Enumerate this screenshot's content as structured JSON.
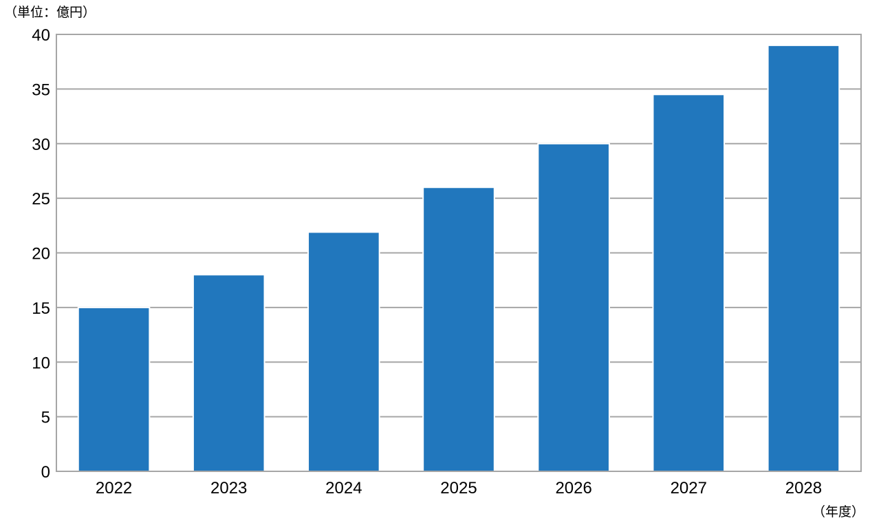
{
  "chart_data": {
    "type": "bar",
    "categories": [
      "2022",
      "2023",
      "2024",
      "2025",
      "2026",
      "2027",
      "2028"
    ],
    "series": [
      {
        "values": [
          15,
          18,
          21.9,
          26,
          30,
          34.5,
          39
        ]
      }
    ],
    "y_unit_label": "（単位：億円）",
    "x_unit_label": "（年度）",
    "ylim": [
      0,
      40
    ],
    "yticks": [
      0,
      5,
      10,
      15,
      20,
      25,
      30,
      35,
      40
    ],
    "grid": true,
    "legend": "none",
    "colors": {
      "bar": "#2177bd",
      "grid": "#a6a6a6",
      "axis": "#a6a6a6"
    }
  }
}
